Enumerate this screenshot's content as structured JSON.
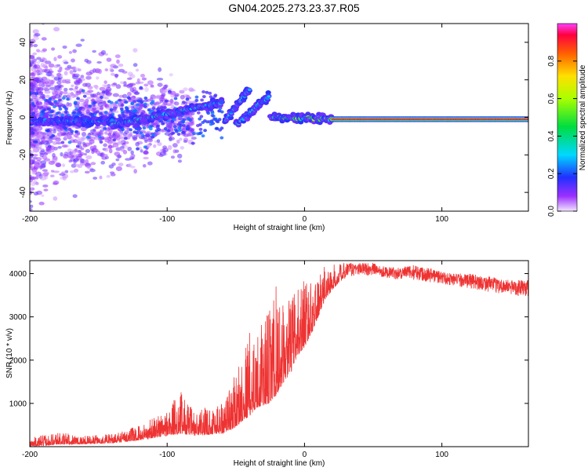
{
  "title": "GN04.2025.273.23.37.R05",
  "chart_data": [
    {
      "type": "heatmap",
      "xlabel": "Height of straight line (km)",
      "ylabel": "Frequency (Hz)",
      "xlim": [
        -200,
        163
      ],
      "ylim": [
        -50,
        50
      ],
      "x_ticks": [
        -200,
        -100,
        0,
        100
      ],
      "x_tick_labels": [
        "-200",
        "-100",
        "0",
        "100"
      ],
      "y_ticks": [
        -40,
        -20,
        0,
        20,
        40
      ],
      "y_tick_labels": [
        "-40",
        "-20",
        "0",
        "20",
        "40"
      ],
      "colorbar": {
        "label": "Normalized spectral amplitude",
        "range": [
          0,
          1
        ],
        "ticks": [
          0.0,
          0.2,
          0.4,
          0.6,
          0.8
        ],
        "tick_labels": [
          "0.0",
          "0.2",
          "0.4",
          "0.6",
          "0.8"
        ]
      },
      "ridge_segments": [
        {
          "x_start": -200,
          "x_end": -140,
          "freq_start": -2,
          "freq_end": -2,
          "amplitude": 0.25
        },
        {
          "x_start": -140,
          "x_end": -60,
          "freq_start": -4,
          "freq_end": 8,
          "amplitude": 0.35
        },
        {
          "x_start": -58,
          "x_end": -40,
          "freq_start": -2,
          "freq_end": 15,
          "amplitude": 0.3
        },
        {
          "x_start": -50,
          "x_end": -26,
          "freq_start": -4,
          "freq_end": 11,
          "amplitude": 0.3
        },
        {
          "x_start": -25,
          "x_end": 20,
          "freq_start": 0,
          "freq_end": -1,
          "amplitude": 0.5
        },
        {
          "x_start": 20,
          "x_end": 163,
          "freq_start": -1,
          "freq_end": -1,
          "amplitude": 0.95
        }
      ]
    },
    {
      "type": "line",
      "xlabel": "Height of straight line (km)",
      "ylabel": "SNR (10 * v/v)",
      "xlim": [
        -200,
        163
      ],
      "ylim": [
        0,
        4300
      ],
      "x_ticks": [
        -200,
        -100,
        0,
        100
      ],
      "x_tick_labels": [
        "-200",
        "-100",
        "0",
        "100"
      ],
      "y_ticks": [
        1000,
        2000,
        3000,
        4000
      ],
      "y_tick_labels": [
        "1000",
        "2000",
        "3000",
        "4000"
      ],
      "series": [
        {
          "name": "SNR",
          "color": "#ee3333",
          "envelope_x": [
            -200,
            -180,
            -160,
            -140,
            -120,
            -100,
            -90,
            -80,
            -60,
            -50,
            -45,
            -40,
            -35,
            -30,
            -25,
            -20,
            -15,
            -10,
            -5,
            0,
            5,
            10,
            15,
            20,
            25,
            30,
            40,
            50,
            60,
            70,
            80,
            90,
            100,
            110,
            120,
            130,
            140,
            150,
            163
          ],
          "envelope_low": [
            0,
            50,
            60,
            80,
            150,
            250,
            300,
            250,
            300,
            450,
            600,
            700,
            900,
            950,
            1000,
            1200,
            1500,
            1700,
            2100,
            2300,
            2600,
            3000,
            3400,
            3600,
            3800,
            3900,
            3950,
            3950,
            3900,
            3850,
            3850,
            3800,
            3750,
            3700,
            3650,
            3600,
            3550,
            3500,
            3450
          ],
          "envelope_high": [
            200,
            350,
            250,
            300,
            500,
            900,
            1300,
            800,
            1100,
            1700,
            2300,
            2700,
            2600,
            2900,
            3300,
            3800,
            3200,
            3500,
            3700,
            4000,
            3800,
            3900,
            4200,
            4200,
            4250,
            4250,
            4250,
            4250,
            4150,
            4150,
            4200,
            4150,
            4050,
            4000,
            4000,
            3950,
            3900,
            3850,
            3850
          ]
        }
      ]
    }
  ]
}
